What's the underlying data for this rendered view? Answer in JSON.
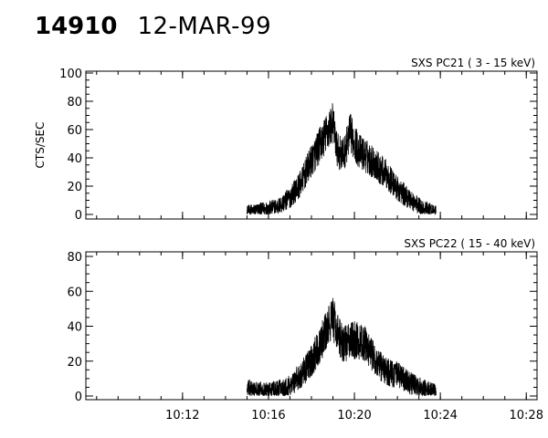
{
  "header": {
    "id": "14910",
    "date": "12-MAR-99"
  },
  "chart_data": [
    {
      "type": "line",
      "title": "SXS PC21  (  3 - 15 keV)",
      "ylabel": "CTS/SEC",
      "xlabel": "",
      "xlim": [
        "10:07:30",
        "10:28:30"
      ],
      "ylim": [
        0,
        100
      ],
      "yticks": [
        0,
        20,
        40,
        60,
        80,
        100
      ],
      "xticks": [
        "10:12",
        "10:16",
        "10:20",
        "10:24",
        "10:28"
      ],
      "x_tick_labels_shown": false,
      "series": [
        {
          "x": [
            "10:15.0",
            "10:15.5",
            "10:16.0",
            "10:16.5",
            "10:17.0",
            "10:17.5",
            "10:18.0",
            "10:18.5",
            "10:18.8",
            "10:19.0",
            "10:19.2",
            "10:19.5",
            "10:19.8",
            "10:20.2",
            "10:20.8",
            "10:21.5",
            "10:22.0",
            "10:22.5",
            "10:23.0",
            "10:23.5",
            "10:23.8"
          ],
          "y": [
            2,
            3,
            4,
            6,
            12,
            22,
            38,
            52,
            60,
            65,
            45,
            42,
            58,
            45,
            38,
            28,
            18,
            12,
            6,
            3,
            2
          ]
        }
      ]
    },
    {
      "type": "line",
      "title": "SXS PC22  ( 15 - 40 keV)",
      "ylabel": "",
      "xlabel": "",
      "xlim": [
        "10:07:30",
        "10:28:30"
      ],
      "ylim": [
        0,
        80
      ],
      "yticks": [
        0,
        20,
        40,
        60,
        80
      ],
      "xticks": [
        "10:12",
        "10:16",
        "10:20",
        "10:24",
        "10:28"
      ],
      "x_tick_labels_shown": true,
      "series": [
        {
          "x": [
            "10:15.0",
            "10:15.5",
            "10:16.0",
            "10:16.5",
            "10:17.0",
            "10:17.5",
            "10:18.0",
            "10:18.5",
            "10:18.8",
            "10:19.0",
            "10:19.2",
            "10:19.5",
            "10:20.0",
            "10:20.5",
            "10:21.0",
            "10:21.5",
            "10:22.0",
            "10:22.5",
            "10:23.0",
            "10:23.5",
            "10:23.8"
          ],
          "y": [
            4,
            3,
            3,
            4,
            6,
            12,
            20,
            32,
            40,
            45,
            36,
            30,
            32,
            30,
            20,
            14,
            12,
            8,
            5,
            3,
            2
          ]
        }
      ]
    }
  ]
}
